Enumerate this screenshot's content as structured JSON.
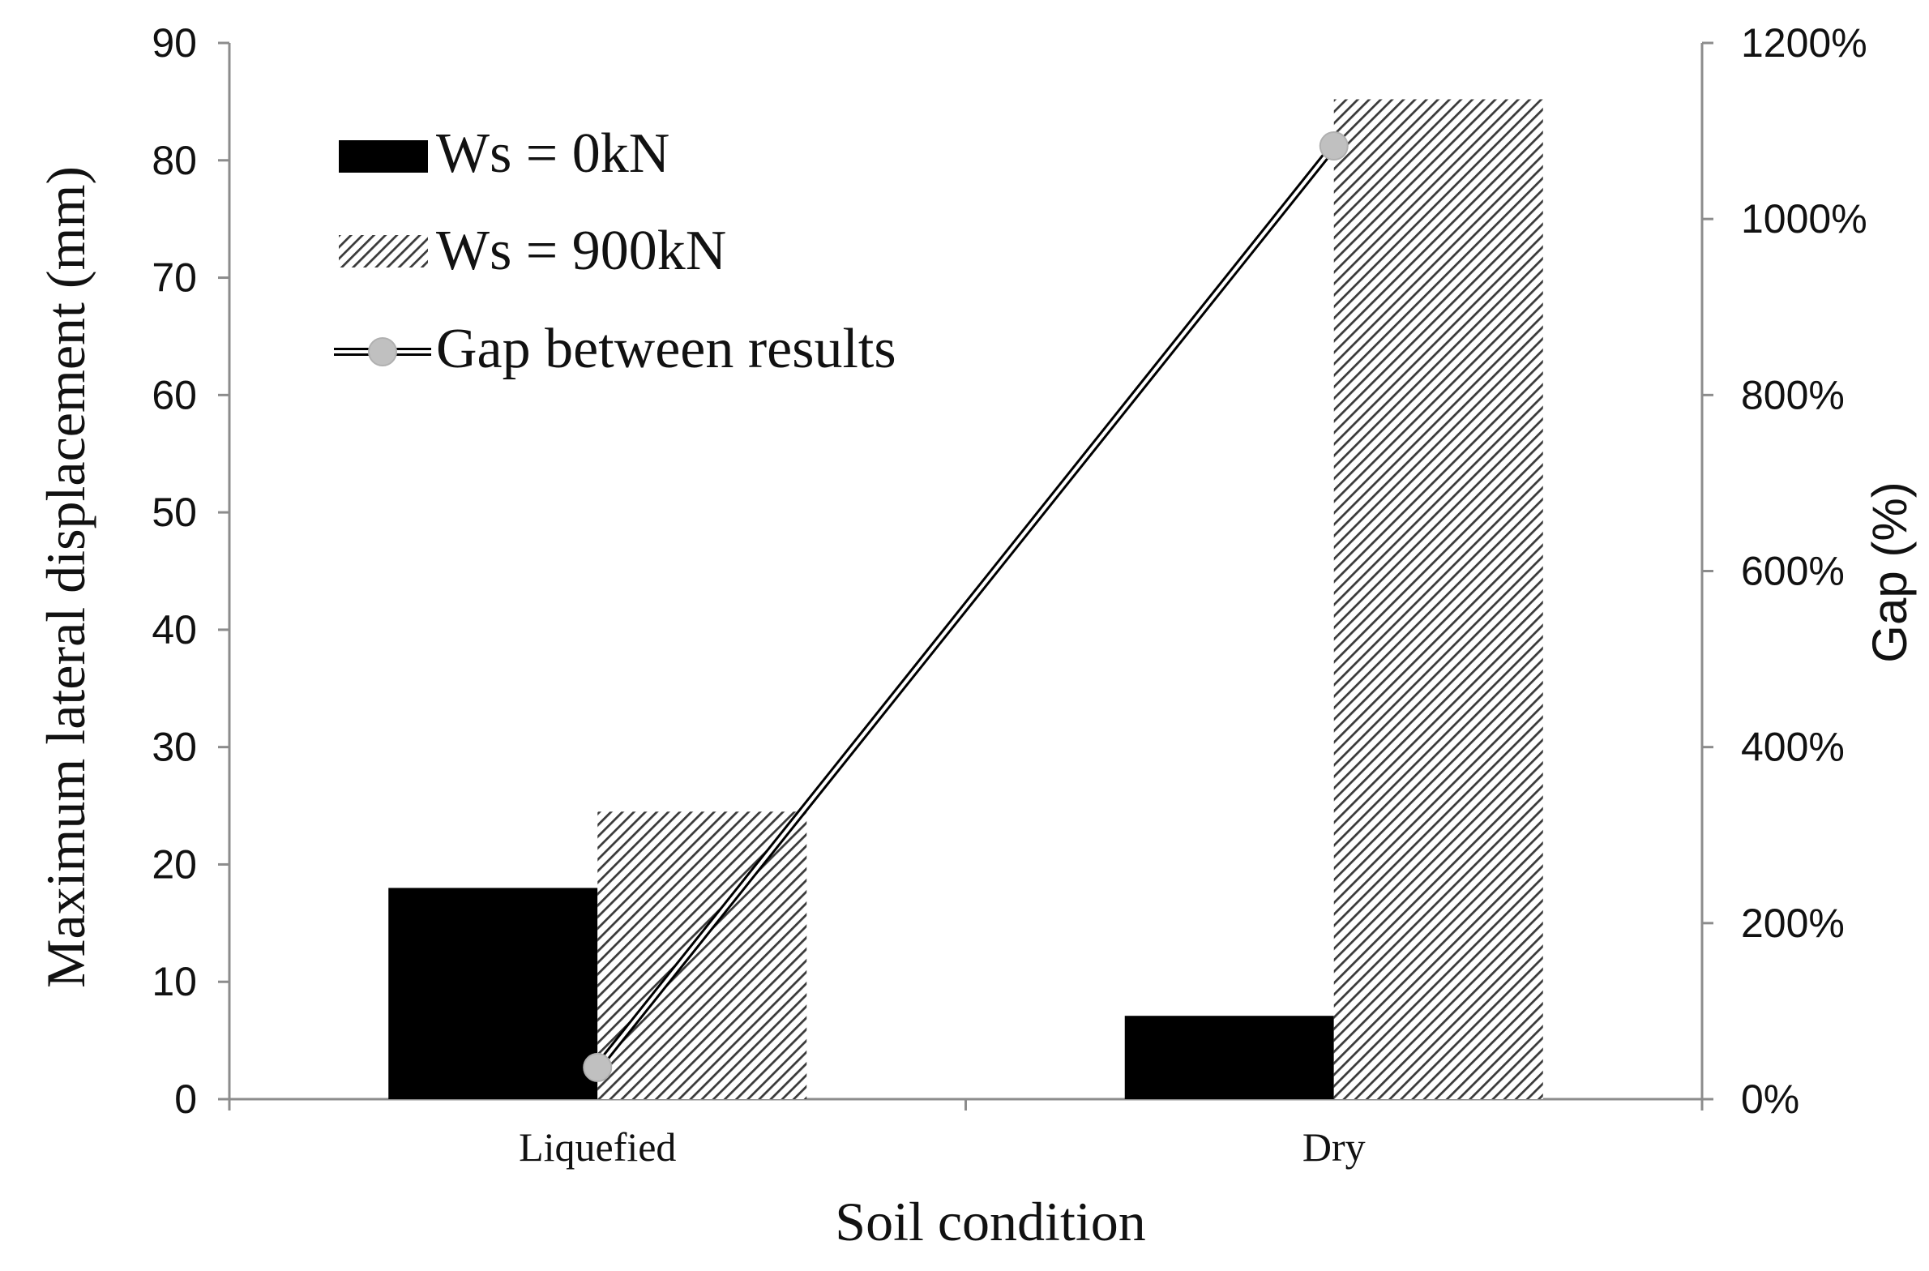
{
  "chart_data": {
    "type": "bar",
    "title": "",
    "xlabel": "Soil condition",
    "ylabel": "Maximum lateral displacement (mm)",
    "y2label": "Gap (%)",
    "categories": [
      "Liquefied",
      "Dry"
    ],
    "ylim": [
      0,
      90
    ],
    "y_ticks": [
      "0",
      "10",
      "20",
      "30",
      "40",
      "50",
      "60",
      "70",
      "80",
      "90"
    ],
    "y2lim": [
      0,
      1200
    ],
    "y2_ticks": [
      "0%",
      "200%",
      "400%",
      "600%",
      "800%",
      "1000%",
      "1200%"
    ],
    "series": [
      {
        "name": "Ws = 0kN",
        "type": "bar",
        "axis": "left",
        "fill": "solid",
        "color": "#000000",
        "values": [
          18.0,
          7.1
        ]
      },
      {
        "name": "Ws = 900kN",
        "type": "bar",
        "axis": "left",
        "fill": "hatched",
        "color": "#555555",
        "values": [
          24.5,
          85.2
        ]
      },
      {
        "name": "Gap between results",
        "type": "line",
        "axis": "right",
        "color": "#000000",
        "marker_color": "#c0c0c0",
        "values": [
          36,
          1083
        ]
      }
    ],
    "legend_position": "top-left",
    "grid": false
  }
}
